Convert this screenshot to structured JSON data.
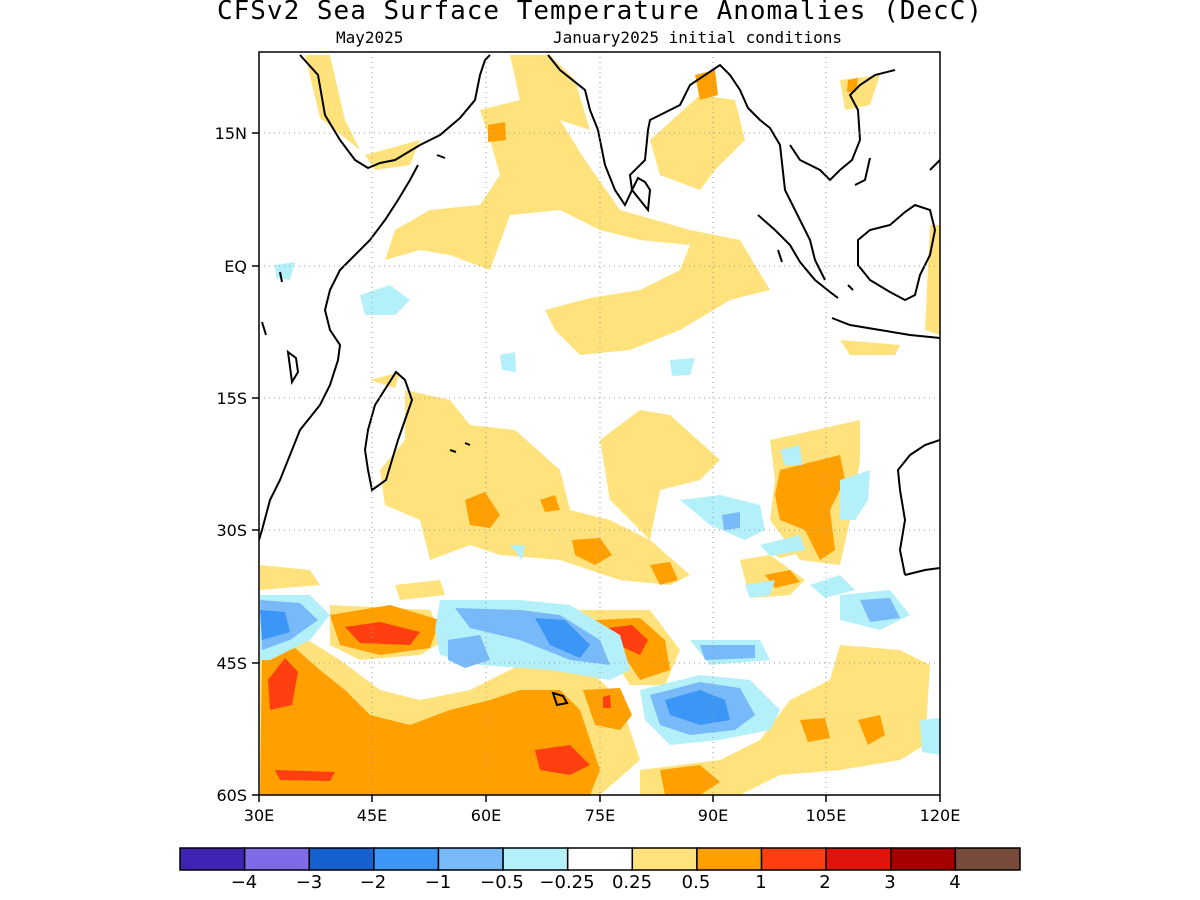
{
  "title": "CFSv2 Sea Surface Temperature Anomalies (DecC)",
  "subtitle_left": "May2025",
  "subtitle_right": "January2025 initial conditions",
  "map": {
    "lon_range": [
      30,
      120
    ],
    "lat_range": [
      -60,
      24
    ],
    "lon_ticks": [
      "30E",
      "45E",
      "60E",
      "75E",
      "90E",
      "105E",
      "120E"
    ],
    "lat_ticks": [
      "15N",
      "EQ",
      "15S",
      "30S",
      "45S",
      "60S"
    ],
    "grid": true
  },
  "colorbar": {
    "colors": [
      "#3f24b4",
      "#7f6ae8",
      "#1660d0",
      "#3c96f5",
      "#78b9fa",
      "#b4f0fa",
      "#ffffff",
      "#ffe27c",
      "#ffa000",
      "#ff3f10",
      "#e0140c",
      "#a50000",
      "#784b3c"
    ],
    "labels": [
      "−4",
      "−3",
      "−2",
      "−1",
      "−0.5",
      "−0.25",
      "0.25",
      "0.5",
      "1",
      "2",
      "3",
      "4"
    ]
  }
}
